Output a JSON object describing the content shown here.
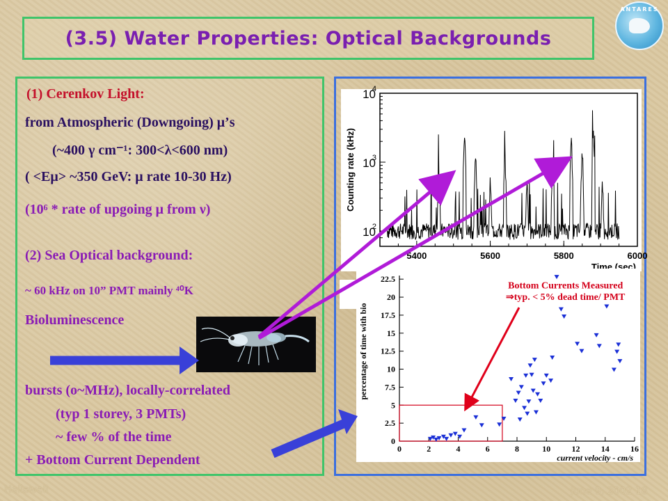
{
  "title": "(3.5) Water Properties: Optical Backgrounds",
  "logo_text": "ANTARES",
  "left": {
    "l1": "(1)   Cerenkov Light:",
    "l2": "from Atmospheric (Downgoing) μ’s",
    "l3": "(~400 γ cm⁻¹: 300<λ<600 nm)",
    "l4": "( <Eμ> ~350 GeV:   μ rate 10-30 Hz)",
    "l5": "(10⁶ * rate of upgoing  μ  from  ν)",
    "l6": "(2) Sea Optical background:",
    "l7": "~ 60 kHz on 10” PMT mainly ⁴⁰K",
    "l8": "Bioluminescence",
    "l9": "bursts (o~MHz), locally-correlated",
    "l10": "(typ 1 storey, 3 PMTs)",
    "l11": "~ few % of the time",
    "l12": "+ Bottom Current Dependent"
  },
  "plot_top": {
    "ylabel": "Counting rate (kHz)",
    "xlabel": "Time (sec)",
    "xticks": [
      "5400",
      "5600",
      "5800",
      "6000"
    ],
    "yticks": [
      "10",
      "10",
      "10"
    ],
    "yexp": [
      "4",
      "3",
      "2"
    ]
  },
  "plot_bottom": {
    "ylabel": "percentage of time with bio",
    "xlabel": "current velocity - cm/s",
    "xticks": [
      "0",
      "2",
      "4",
      "6",
      "8",
      "10",
      "12",
      "14",
      "16"
    ],
    "yticks": [
      "0",
      "2.5",
      "5",
      "7.5",
      "10",
      "12.5",
      "15",
      "17.5",
      "20",
      "22.5"
    ],
    "annot1": "Bottom Currents Measured",
    "annot2": "⇒typ. < 5% dead time/ PMT",
    "point_color": "#1a2fd6"
  },
  "chart_data": [
    {
      "type": "line",
      "title": "",
      "xlabel": "Time (sec)",
      "ylabel": "Counting rate (kHz)",
      "xlim": [
        5300,
        6000
      ],
      "ylim": [
        60,
        10000
      ],
      "yscale": "log"
    },
    {
      "type": "scatter",
      "title": "",
      "xlabel": "current velocity - cm/s",
      "ylabel": "percentage of time with bio",
      "xlim": [
        0,
        16
      ],
      "ylim": [
        0,
        23
      ],
      "x": [
        2.1,
        2.3,
        2.5,
        2.7,
        3.0,
        3.2,
        3.5,
        3.8,
        4.1,
        4.4,
        5.2,
        5.6,
        6.8,
        7.1,
        7.6,
        7.9,
        8.1,
        8.3,
        8.6,
        8.7,
        8.8,
        8.9,
        9.0,
        9.1,
        9.2,
        9.4,
        9.6,
        9.8,
        10.0,
        10.4,
        10.7,
        11.0,
        12.1,
        12.4,
        13.4,
        14.1,
        14.6,
        14.8,
        15.0,
        8.2,
        8.5,
        9.3,
        10.3,
        11.2,
        13.6,
        14.9
      ],
      "y": [
        0.3,
        0.5,
        0.2,
        0.4,
        0.6,
        0.3,
        0.8,
        1.0,
        0.6,
        1.5,
        3.3,
        2.2,
        2.3,
        3.1,
        8.6,
        5.6,
        6.7,
        7.5,
        9.1,
        3.8,
        5.5,
        10.5,
        9.2,
        7.0,
        11.3,
        6.5,
        5.6,
        8.0,
        9.1,
        11.6,
        22.8,
        18.3,
        13.5,
        12.5,
        14.7,
        18.7,
        9.9,
        12.4,
        11.1,
        3.0,
        4.6,
        4.0,
        8.4,
        17.3,
        13.2,
        13.4
      ]
    }
  ]
}
